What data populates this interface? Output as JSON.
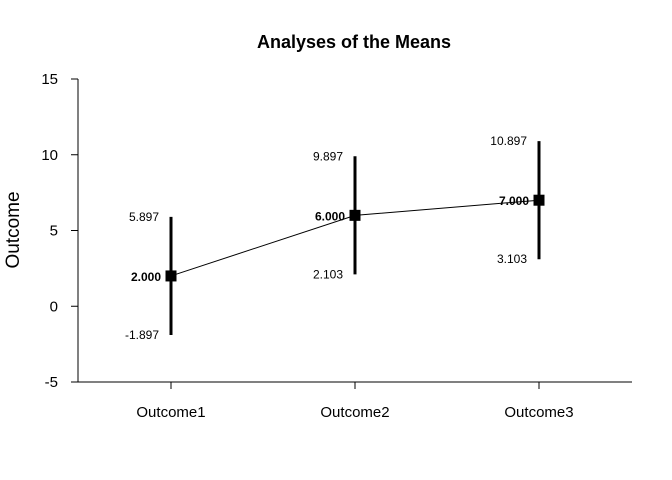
{
  "chart_data": {
    "type": "line",
    "title": "Analyses of the Means",
    "xlabel": "",
    "ylabel": "Outcome",
    "ylim": [
      -5,
      15
    ],
    "yticks": [
      "-5",
      "0",
      "5",
      "10",
      "15"
    ],
    "categories": [
      "Outcome1",
      "Outcome2",
      "Outcome3"
    ],
    "means": [
      2.0,
      6.0,
      7.0
    ],
    "lower": [
      -1.897,
      2.103,
      3.103
    ],
    "upper": [
      5.897,
      9.897,
      10.897
    ],
    "mean_labels": [
      "2.000",
      "6.000",
      "7.000"
    ],
    "lower_labels": [
      "-1.897",
      "2.103",
      "3.103"
    ],
    "upper_labels": [
      "5.897",
      "9.897",
      "10.897"
    ],
    "grid": false,
    "colors": {
      "marks": "#000000",
      "background": "#ffffff"
    }
  }
}
